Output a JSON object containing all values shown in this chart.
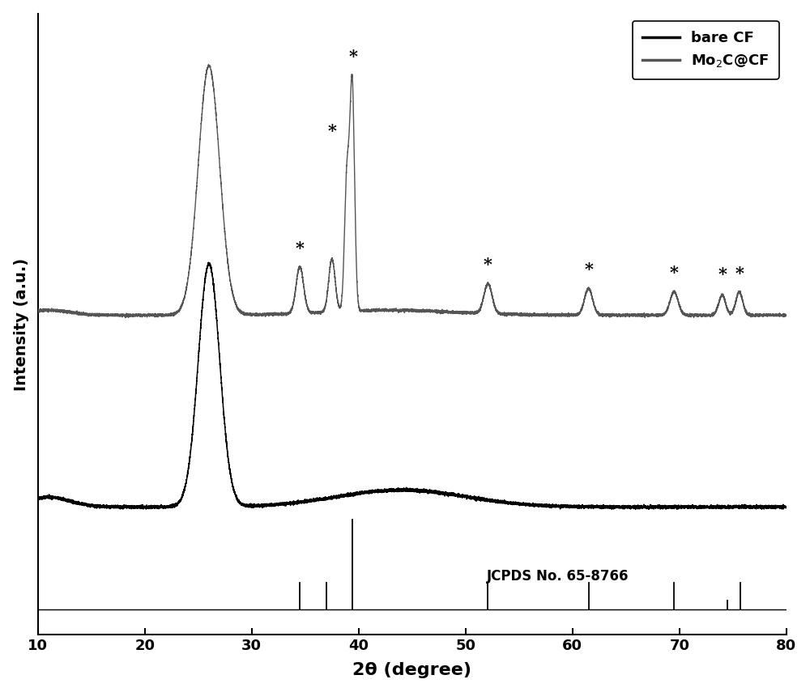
{
  "xlabel": "2θ (degree)",
  "ylabel": "Intensity (a.u.)",
  "xlim": [
    10,
    80
  ],
  "legend_bare_cf": "bare CF",
  "legend_mo2c": "Mo₂C@CF",
  "jcpds_label": "JCPDS No. 65-8766",
  "bare_cf_color": "#000000",
  "mo2c_color": "#555555",
  "jcpds_color": "#000000",
  "jcpds_lines": [
    34.5,
    37.0,
    39.4,
    52.1,
    61.5,
    69.5,
    74.5,
    75.7
  ],
  "jcpds_heights": [
    0.3,
    0.3,
    1.0,
    0.3,
    0.3,
    0.3,
    0.1,
    0.3
  ],
  "star_positions": [
    34.5,
    37.5,
    39.5,
    52.1,
    61.5,
    69.5,
    74.0,
    75.6
  ],
  "background_color": "#ffffff"
}
